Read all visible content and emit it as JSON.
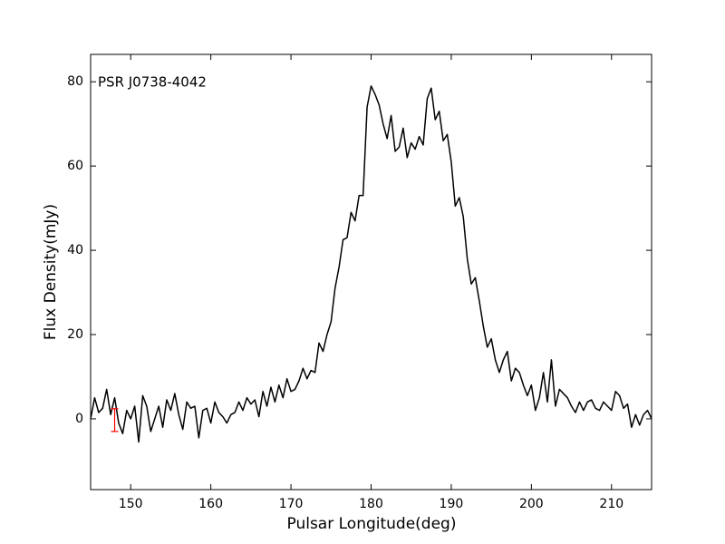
{
  "chart_data": {
    "type": "line",
    "annotation": "PSR J0738-4042",
    "x_label": "Pulsar Longitude(deg)",
    "y_label": "Flux Density(mJy)",
    "x": [
      145,
      145.5,
      146,
      146.5,
      147,
      147.5,
      148,
      148.5,
      149,
      149.5,
      150,
      150.5,
      151,
      151.5,
      152,
      152.5,
      153,
      153.5,
      154,
      154.5,
      155,
      155.5,
      156,
      156.5,
      157,
      157.5,
      158,
      158.5,
      159,
      159.5,
      160,
      160.5,
      161,
      161.5,
      162,
      162.5,
      163,
      163.5,
      164,
      164.5,
      165,
      165.5,
      166,
      166.5,
      167,
      167.5,
      168,
      168.5,
      169,
      169.5,
      170,
      170.5,
      171,
      171.5,
      172,
      172.5,
      173,
      173.5,
      174,
      174.5,
      175,
      175.5,
      176,
      176.5,
      177,
      177.5,
      178,
      178.5,
      179,
      179.5,
      180,
      180.5,
      181,
      181.5,
      182,
      182.5,
      183,
      183.5,
      184,
      184.5,
      185,
      185.5,
      186,
      186.5,
      187,
      187.5,
      188,
      188.5,
      189,
      189.5,
      190,
      190.5,
      191,
      191.5,
      192,
      192.5,
      193,
      193.5,
      194,
      194.5,
      195,
      195.5,
      196,
      196.5,
      197,
      197.5,
      198,
      198.5,
      199,
      199.5,
      200,
      200.5,
      201,
      201.5,
      202,
      202.5,
      203,
      203.5,
      204,
      204.5,
      205,
      205.5,
      206,
      206.5,
      207,
      207.5,
      208,
      208.5,
      209,
      209.5,
      210,
      210.5,
      211,
      211.5,
      212,
      212.5,
      213,
      213.5,
      214,
      214.5,
      215
    ],
    "series": [
      {
        "color": "#000000",
        "values": [
          0,
          5,
          1.5,
          2.5,
          7,
          1,
          5,
          -1,
          -3.5,
          2,
          0,
          3,
          -5.5,
          5.5,
          3,
          -3,
          0,
          3,
          -2,
          4.5,
          2,
          6,
          1,
          -2.5,
          4,
          2.5,
          3,
          -4.5,
          2,
          2.5,
          -1,
          4,
          1.5,
          0.5,
          -1,
          1,
          1.5,
          4,
          2,
          5,
          3.5,
          4.5,
          0.5,
          6.5,
          3,
          7.5,
          4,
          8,
          5,
          9.5,
          6.5,
          7,
          9,
          12,
          9.5,
          11.5,
          11,
          18,
          16,
          20,
          23,
          31,
          36,
          42.5,
          43,
          49,
          47,
          53,
          53,
          74,
          79,
          77,
          74.5,
          70,
          66.5,
          72,
          63.5,
          64.5,
          69,
          62,
          65.5,
          64,
          67,
          65,
          76,
          78.5,
          71,
          73,
          66,
          67.5,
          61,
          50.5,
          52.5,
          48,
          38,
          32,
          33.5,
          28,
          22,
          17,
          19,
          14,
          11,
          14,
          16,
          9,
          12,
          11,
          8,
          5.5,
          8,
          2,
          5,
          11,
          4,
          14,
          3,
          7,
          6,
          5,
          3,
          1.5,
          4,
          2,
          4,
          4.5,
          2.5,
          2,
          4,
          3,
          2,
          6.5,
          5.5,
          2.5,
          3.5,
          -2,
          1,
          -1.5,
          1,
          2,
          0
        ]
      }
    ],
    "error_bar": {
      "x": 148,
      "y": -0.3,
      "error": 2.7,
      "color": "#ff0000"
    },
    "xlim": [
      145,
      215
    ],
    "ylim": [
      -16.8,
      86.5
    ],
    "xticks": [
      150,
      160,
      170,
      180,
      190,
      200,
      210
    ],
    "yticks": [
      0,
      20,
      40,
      60,
      80
    ]
  }
}
